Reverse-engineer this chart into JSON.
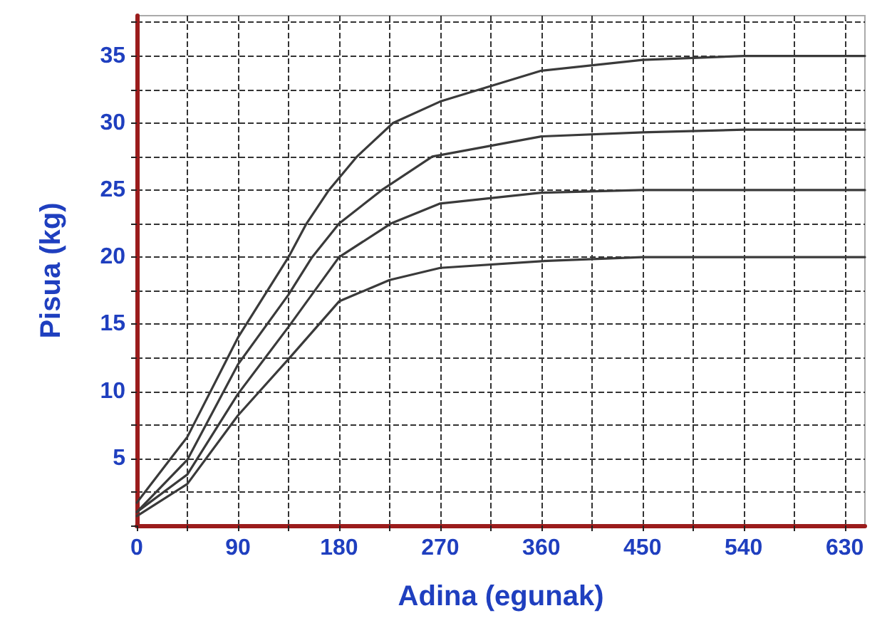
{
  "chart_data": {
    "type": "line",
    "xlabel": "Adina (egunak)",
    "ylabel": "Pisua (kg)",
    "xlim": [
      0,
      648
    ],
    "ylim": [
      0,
      38
    ],
    "xticks": [
      0,
      {
        "value": 45,
        "label": null
      },
      90,
      {
        "value": 135,
        "label": null
      },
      180,
      {
        "value": 225,
        "label": null
      },
      270,
      {
        "value": 315,
        "label": null
      },
      360,
      {
        "value": 405,
        "label": null
      },
      450,
      {
        "value": 495,
        "label": null
      },
      540,
      {
        "value": 585,
        "label": null
      },
      630
    ],
    "yticks": [
      {
        "value": 0,
        "label": null
      },
      {
        "value": 2.5,
        "label": null
      },
      5,
      {
        "value": 7.5,
        "label": null
      },
      10,
      {
        "value": 12.5,
        "label": null
      },
      15,
      {
        "value": 17.5,
        "label": null
      },
      20,
      {
        "value": 22.5,
        "label": null
      },
      25,
      {
        "value": 27.5,
        "label": null
      },
      30,
      {
        "value": 32.5,
        "label": null
      },
      35,
      {
        "value": 37.5,
        "label": null
      }
    ],
    "grid": true,
    "marker": "none",
    "line_style": "solid",
    "series": [
      {
        "color": "#3a3a3a",
        "x": [
          0,
          45,
          90,
          135,
          151,
          171,
          196,
          228,
          270,
          360,
          450,
          540,
          648
        ],
        "values": [
          1.7,
          6.6,
          14,
          20,
          22.5,
          25,
          27.5,
          30,
          31.6,
          33.9,
          34.7,
          35,
          35
        ]
      },
      {
        "color": "#3a3a3a",
        "x": [
          0,
          45,
          90,
          135,
          156,
          180,
          218,
          263,
          360,
          450,
          540,
          648
        ],
        "values": [
          1,
          4.9,
          12,
          17.2,
          20,
          22.5,
          25,
          27.5,
          29,
          29.3,
          29.5,
          29.5
        ]
      },
      {
        "color": "#3a3a3a",
        "x": [
          0,
          45,
          90,
          135,
          180,
          226,
          270,
          360,
          450,
          648
        ],
        "values": [
          1,
          3.8,
          9.8,
          14.8,
          20,
          22.5,
          24,
          24.8,
          25,
          25
        ]
      },
      {
        "color": "#3a3a3a",
        "x": [
          0,
          45,
          90,
          135,
          180,
          225,
          270,
          360,
          450,
          648
        ],
        "values": [
          0.7,
          3.1,
          8.2,
          12.4,
          16.7,
          18.3,
          19.2,
          19.7,
          20,
          20
        ]
      }
    ]
  }
}
